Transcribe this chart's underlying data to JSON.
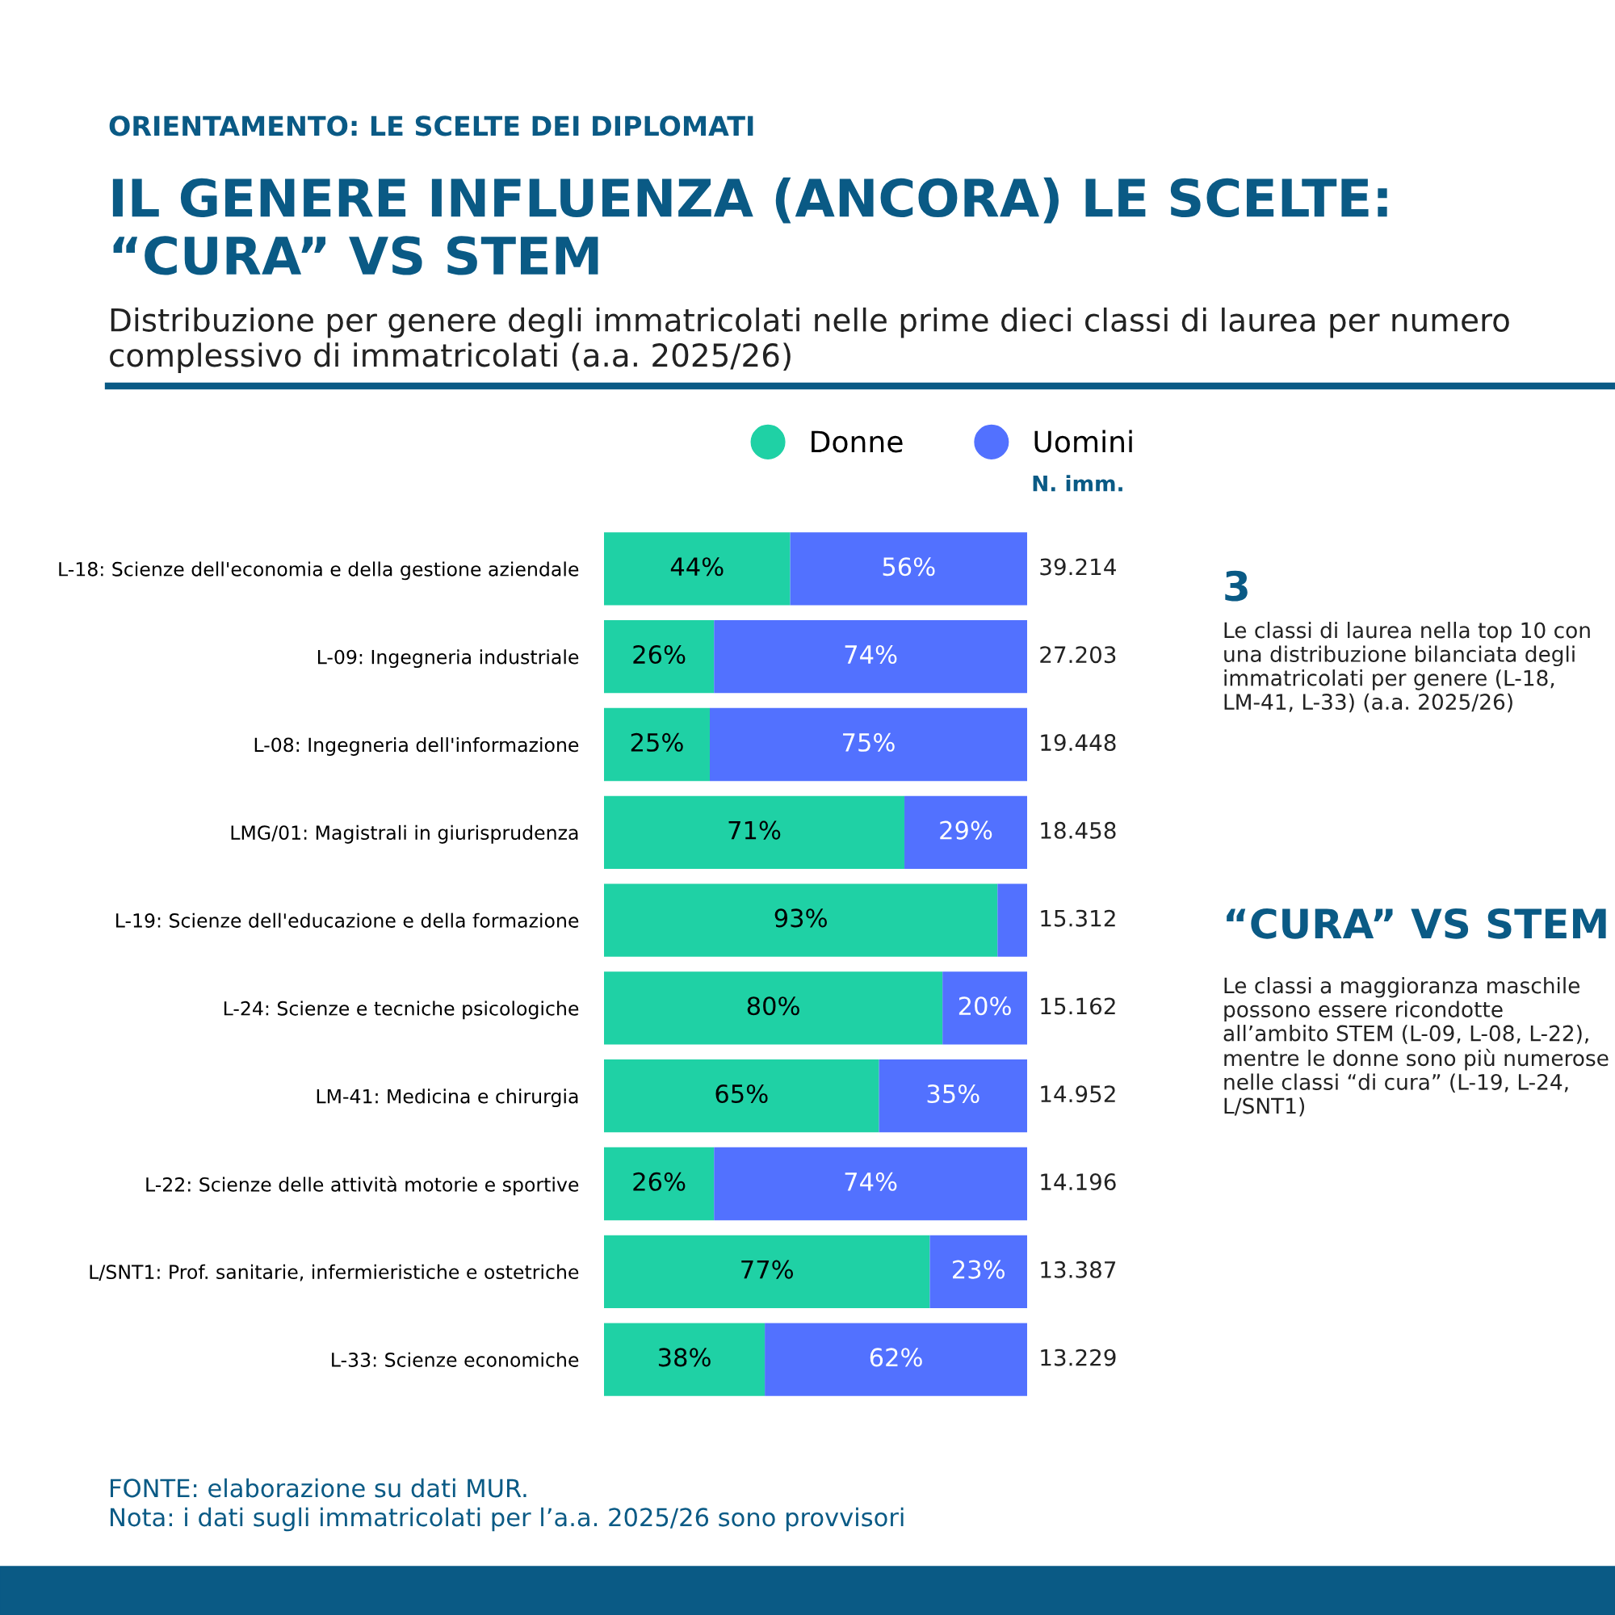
{
  "chart_data": {
    "type": "bar",
    "orientation": "horizontal",
    "stacked": true,
    "title": "IL GENERE INFLUENZA (ANCORA) LE SCELTE: “CURA” VS STEM",
    "subtitle": "Distribuzione per genere degli immatricolati nelle prime dieci classi di laurea per numero complessivo di immatricolati (a.a. 2025/26)",
    "categories": [
      "L-18: Scienze dell'economia e della gestione aziendale",
      "L-09: Ingegneria industriale",
      "L-08: Ingegneria dell'informazione",
      "LMG/01: Magistrali in giurisprudenza",
      "L-19: Scienze dell'educazione e della formazione",
      "L-24: Scienze e tecniche psicologiche",
      "LM-41: Medicina e chirurgia",
      "L-22: Scienze delle attività motorie e sportive",
      "L/SNT1: Prof. sanitarie, infermieristiche e ostetriche",
      "L-33: Scienze economiche"
    ],
    "series": [
      {
        "name": "Donne",
        "color": "#1fd1a5",
        "values": [
          44,
          26,
          25,
          71,
          93,
          80,
          65,
          26,
          77,
          38
        ],
        "value_labels": [
          "44%",
          "26%",
          "25%",
          "71%",
          "93%",
          "80%",
          "65%",
          "26%",
          "77%",
          "38%"
        ]
      },
      {
        "name": "Uomini",
        "color": "#5271ff",
        "values": [
          56,
          74,
          75,
          29,
          7,
          20,
          35,
          74,
          23,
          62
        ],
        "value_labels": [
          "56%",
          "74%",
          "75%",
          "29%",
          null,
          "20%",
          "35%",
          "74%",
          "23%",
          "62%"
        ]
      }
    ],
    "xlim": [
      0,
      100
    ],
    "tick_labels": "y",
    "legend": "top",
    "grid": false,
    "annotations": [
      "ORIENTAMENTO: LE SCELTE DEI DIPLOMATI",
      "N. imm.",
      "39.214",
      "27.203",
      "19.448",
      "18.458",
      "15.312",
      "15.162",
      "14.952",
      "14.196",
      "13.387",
      "13.229",
      "3",
      "Le classi di laurea nella top 10 con una distribuzione bilanciata degli immatricolati per genere (L-18, LM-41, L-33) (a.a. 2025/26)",
      "“CURA” VS STEM",
      "Le classi a maggioranza maschile possono essere ricondotte all’ambito STEM (L-09, L-08, L-22), mentre le donne sono più numerose nelle classi “di cura” (L-19, L-24, L/SNT1)",
      "FONTE: elaborazione su dati MUR.",
      "Nota: i dati sugli immatricolati per l’a.a. 2025/26 sono provvisori"
    ]
  }
}
